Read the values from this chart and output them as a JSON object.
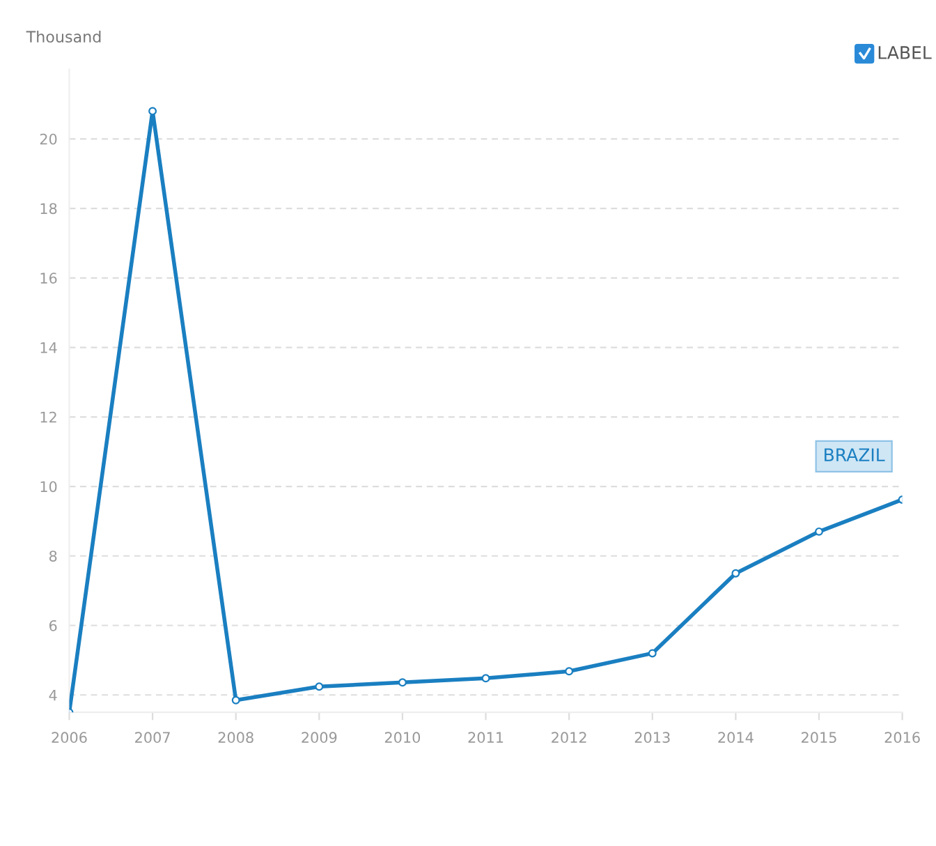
{
  "chart_data": {
    "type": "line",
    "ylabel": "Thousand",
    "x": [
      2006,
      2007,
      2008,
      2009,
      2010,
      2011,
      2012,
      2013,
      2014,
      2015,
      2016
    ],
    "series": [
      {
        "name": "BRAZIL",
        "color": "#1a7fc1",
        "values": [
          3.5,
          20.8,
          3.85,
          4.24,
          4.36,
          4.48,
          4.68,
          5.2,
          7.5,
          8.7,
          9.62
        ]
      }
    ],
    "xlim": [
      2006,
      2016
    ],
    "xticks": [
      2006,
      2007,
      2008,
      2009,
      2010,
      2011,
      2012,
      2013,
      2014,
      2015,
      2016
    ],
    "ylim": [
      3.5,
      22
    ],
    "yticks": [
      4,
      6,
      8,
      10,
      12,
      14,
      16,
      18,
      20
    ],
    "grid": "y",
    "marker": "circle",
    "line_style": "solid",
    "annotations": [
      "LABEL"
    ]
  }
}
